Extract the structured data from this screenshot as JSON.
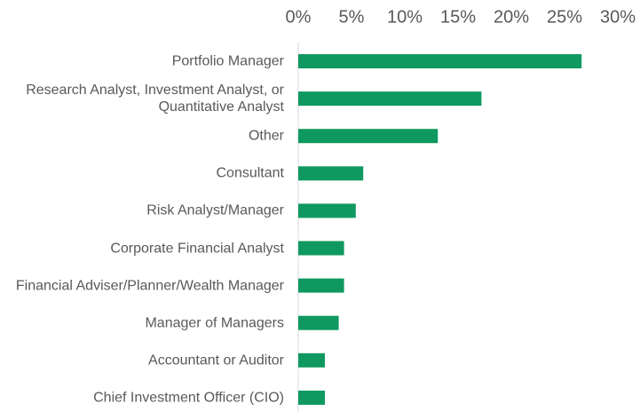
{
  "chart_data": {
    "type": "bar",
    "orientation": "horizontal",
    "categories": [
      "Portfolio Manager",
      "Research Analyst, Investment Analyst, or Quantitative Analyst",
      "Other",
      "Consultant",
      "Risk Analyst/Manager",
      "Corporate Financial Analyst",
      "Financial Adviser/Planner/Wealth Manager",
      "Manager of Managers",
      "Accountant or Auditor",
      "Chief Investment Officer (CIO)"
    ],
    "values": [
      26.6,
      17.2,
      13.1,
      6.1,
      5.4,
      4.3,
      4.3,
      3.8,
      2.5,
      2.5
    ],
    "color": "#0f9960",
    "xlim": [
      0,
      30
    ],
    "xticks": [
      {
        "value": 0,
        "label": "0%"
      },
      {
        "value": 5,
        "label": "5%"
      },
      {
        "value": 10,
        "label": "10%"
      },
      {
        "value": 15,
        "label": "15%"
      },
      {
        "value": 20,
        "label": "20%"
      },
      {
        "value": 25,
        "label": "25%"
      },
      {
        "value": 30,
        "label": "30%"
      }
    ],
    "grid": false
  }
}
